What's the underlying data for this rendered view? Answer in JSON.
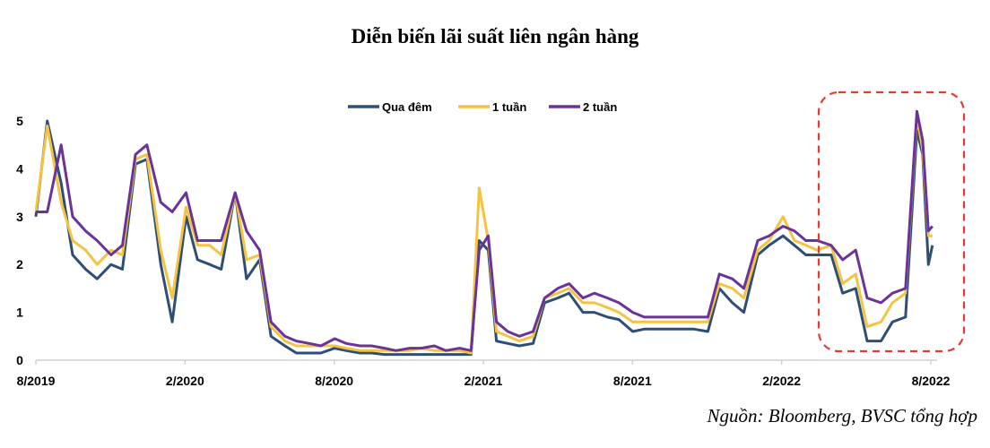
{
  "chart_data": {
    "type": "line",
    "title": "Diễn biến lãi suất liên ngân hàng",
    "xlabel": "",
    "ylabel": "",
    "ylim": [
      0,
      5.5
    ],
    "yticks": [
      "0",
      "1",
      "2",
      "3",
      "4",
      "5"
    ],
    "xticks": [
      "8/2019",
      "2/2020",
      "8/2020",
      "2/2021",
      "8/2021",
      "2/2022",
      "8/2022"
    ],
    "xlim": [
      "2019-08-01",
      "2022-08-01"
    ],
    "grid": false,
    "legend_position": "top-center",
    "x": [
      "2019-08-01",
      "2019-08-15",
      "2019-09-01",
      "2019-09-15",
      "2019-10-01",
      "2019-10-15",
      "2019-11-01",
      "2019-11-15",
      "2019-12-01",
      "2019-12-15",
      "2020-01-01",
      "2020-01-15",
      "2020-02-01",
      "2020-02-15",
      "2020-03-01",
      "2020-03-15",
      "2020-04-01",
      "2020-04-15",
      "2020-05-01",
      "2020-05-15",
      "2020-06-01",
      "2020-06-15",
      "2020-07-01",
      "2020-07-15",
      "2020-08-01",
      "2020-08-15",
      "2020-09-01",
      "2020-09-15",
      "2020-10-01",
      "2020-10-15",
      "2020-11-01",
      "2020-11-15",
      "2020-12-01",
      "2020-12-15",
      "2021-01-01",
      "2021-01-15",
      "2021-01-25",
      "2021-02-05",
      "2021-02-15",
      "2021-03-01",
      "2021-03-15",
      "2021-04-01",
      "2021-04-15",
      "2021-05-01",
      "2021-05-15",
      "2021-06-01",
      "2021-06-15",
      "2021-07-01",
      "2021-07-15",
      "2021-08-01",
      "2021-08-15",
      "2021-09-01",
      "2021-09-15",
      "2021-10-01",
      "2021-10-15",
      "2021-11-01",
      "2021-11-15",
      "2021-12-01",
      "2021-12-15",
      "2022-01-01",
      "2022-01-15",
      "2022-02-01",
      "2022-02-15",
      "2022-03-01",
      "2022-03-15",
      "2022-04-01",
      "2022-04-15",
      "2022-05-01",
      "2022-05-15",
      "2022-06-01",
      "2022-06-15",
      "2022-07-01",
      "2022-07-15",
      "2022-07-22",
      "2022-07-29",
      "2022-08-03"
    ],
    "series": [
      {
        "name": "Qua đêm",
        "color": "#2e4e76",
        "values": [
          3.0,
          5.0,
          3.7,
          2.2,
          1.9,
          1.7,
          2.0,
          1.9,
          4.1,
          4.2,
          2.0,
          0.8,
          3.0,
          2.1,
          2.0,
          1.9,
          3.5,
          1.7,
          2.1,
          0.5,
          0.3,
          0.15,
          0.15,
          0.15,
          0.25,
          0.2,
          0.15,
          0.15,
          0.12,
          0.12,
          0.12,
          0.12,
          0.12,
          0.12,
          0.12,
          0.12,
          2.5,
          2.3,
          0.4,
          0.35,
          0.3,
          0.35,
          1.2,
          1.3,
          1.4,
          1.0,
          1.0,
          0.9,
          0.85,
          0.6,
          0.65,
          0.65,
          0.65,
          0.65,
          0.65,
          0.6,
          1.5,
          1.2,
          1.0,
          2.2,
          2.4,
          2.6,
          2.4,
          2.2,
          2.2,
          2.2,
          1.4,
          1.5,
          0.4,
          0.4,
          0.8,
          0.9,
          4.8,
          4.3,
          2.0,
          2.4
        ]
      },
      {
        "name": "1 tuần",
        "color": "#f5c342",
        "values": [
          3.1,
          4.9,
          3.3,
          2.5,
          2.3,
          2.0,
          2.3,
          2.2,
          4.2,
          4.3,
          2.3,
          1.3,
          3.2,
          2.4,
          2.4,
          2.2,
          3.5,
          2.1,
          2.2,
          0.7,
          0.4,
          0.3,
          0.3,
          0.3,
          0.3,
          0.25,
          0.2,
          0.2,
          0.2,
          0.2,
          0.2,
          0.25,
          0.2,
          0.2,
          0.2,
          0.15,
          3.6,
          2.5,
          0.6,
          0.5,
          0.4,
          0.5,
          1.3,
          1.4,
          1.5,
          1.2,
          1.2,
          1.1,
          1.0,
          0.8,
          0.8,
          0.8,
          0.8,
          0.8,
          0.8,
          0.8,
          1.6,
          1.5,
          1.3,
          2.3,
          2.5,
          3.0,
          2.5,
          2.4,
          2.3,
          2.4,
          1.6,
          1.8,
          0.7,
          0.8,
          1.2,
          1.4,
          5.1,
          4.4,
          2.6,
          2.6
        ]
      },
      {
        "name": "2 tuần",
        "color": "#6a3399",
        "values": [
          3.1,
          3.1,
          4.5,
          3.0,
          2.7,
          2.5,
          2.2,
          2.4,
          4.3,
          4.5,
          3.3,
          3.1,
          3.5,
          2.5,
          2.5,
          2.5,
          3.5,
          2.7,
          2.3,
          0.8,
          0.5,
          0.4,
          0.35,
          0.3,
          0.45,
          0.35,
          0.3,
          0.3,
          0.25,
          0.2,
          0.25,
          0.25,
          0.3,
          0.2,
          0.25,
          0.2,
          2.3,
          2.6,
          0.8,
          0.6,
          0.5,
          0.6,
          1.3,
          1.5,
          1.6,
          1.3,
          1.4,
          1.3,
          1.2,
          1.0,
          0.9,
          0.9,
          0.9,
          0.9,
          0.9,
          0.9,
          1.8,
          1.7,
          1.5,
          2.5,
          2.6,
          2.8,
          2.7,
          2.5,
          2.5,
          2.4,
          2.1,
          2.3,
          1.3,
          1.2,
          1.4,
          1.5,
          5.2,
          4.6,
          2.7,
          2.8
        ]
      }
    ],
    "annotation": {
      "type": "dashed-box",
      "color": "#e53935",
      "range": [
        "2022-04-01",
        "2022-08-15"
      ]
    },
    "source": "Nguồn: Bloomberg, BVSC tổng hợp"
  }
}
